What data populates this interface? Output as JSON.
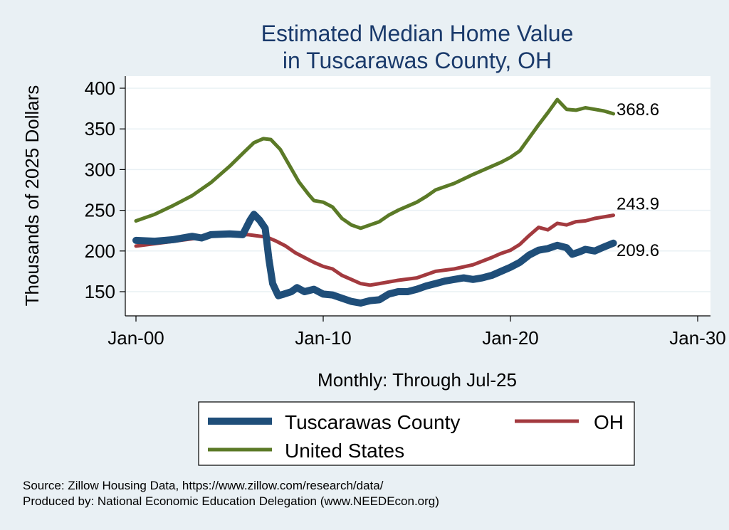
{
  "chart_data": {
    "type": "line",
    "title": [
      "Estimated Median Home Value",
      "in Tuscarawas County, OH"
    ],
    "ylabel": "Thousands of 2025 Dollars",
    "xlabel": "Monthly: Through Jul-25",
    "ylim": [
      125,
      410
    ],
    "yticks": [
      150,
      200,
      250,
      300,
      350,
      400
    ],
    "xlim": [
      2000,
      2030
    ],
    "xticks": [
      2000,
      2010,
      2020,
      2030
    ],
    "xtick_labels": [
      "Jan-00",
      "Jan-10",
      "Jan-20",
      "Jan-30"
    ],
    "grid": true,
    "legend_position": "bottom",
    "series": [
      {
        "name": "Tuscarawas County",
        "color": "#1f4e79",
        "end_label": "209.6",
        "points": [
          [
            2000.0,
            213
          ],
          [
            2001.0,
            212
          ],
          [
            2002.0,
            214
          ],
          [
            2003.0,
            218
          ],
          [
            2003.5,
            216
          ],
          [
            2004.0,
            220
          ],
          [
            2005.0,
            221
          ],
          [
            2005.7,
            220
          ],
          [
            2006.1,
            238
          ],
          [
            2006.3,
            245
          ],
          [
            2006.6,
            238
          ],
          [
            2006.9,
            228
          ],
          [
            2007.1,
            190
          ],
          [
            2007.3,
            160
          ],
          [
            2007.6,
            145
          ],
          [
            2007.9,
            147
          ],
          [
            2008.3,
            150
          ],
          [
            2008.6,
            155
          ],
          [
            2009.0,
            150
          ],
          [
            2009.5,
            153
          ],
          [
            2010.0,
            147
          ],
          [
            2010.5,
            146
          ],
          [
            2011.0,
            142
          ],
          [
            2011.5,
            138
          ],
          [
            2012.0,
            136
          ],
          [
            2012.5,
            139
          ],
          [
            2013.0,
            140
          ],
          [
            2013.5,
            147
          ],
          [
            2014.0,
            150
          ],
          [
            2014.5,
            150
          ],
          [
            2015.0,
            153
          ],
          [
            2015.5,
            157
          ],
          [
            2016.0,
            160
          ],
          [
            2016.5,
            163
          ],
          [
            2017.0,
            165
          ],
          [
            2017.5,
            167
          ],
          [
            2018.0,
            165
          ],
          [
            2018.5,
            167
          ],
          [
            2019.0,
            170
          ],
          [
            2019.5,
            175
          ],
          [
            2020.0,
            180
          ],
          [
            2020.5,
            186
          ],
          [
            2021.0,
            195
          ],
          [
            2021.5,
            201
          ],
          [
            2022.0,
            203
          ],
          [
            2022.5,
            207
          ],
          [
            2023.0,
            204
          ],
          [
            2023.3,
            196
          ],
          [
            2023.7,
            199
          ],
          [
            2024.0,
            202
          ],
          [
            2024.5,
            200
          ],
          [
            2025.0,
            205
          ],
          [
            2025.5,
            209.6
          ]
        ]
      },
      {
        "name": "OH",
        "color": "#a33a3f",
        "end_label": "243.9",
        "points": [
          [
            2000.0,
            206
          ],
          [
            2001.0,
            209
          ],
          [
            2002.0,
            212
          ],
          [
            2003.0,
            215
          ],
          [
            2004.0,
            218
          ],
          [
            2005.0,
            220
          ],
          [
            2006.0,
            220
          ],
          [
            2007.0,
            217
          ],
          [
            2007.5,
            212
          ],
          [
            2008.0,
            206
          ],
          [
            2008.5,
            198
          ],
          [
            2009.0,
            192
          ],
          [
            2009.5,
            186
          ],
          [
            2010.0,
            181
          ],
          [
            2010.5,
            178
          ],
          [
            2011.0,
            170
          ],
          [
            2011.5,
            165
          ],
          [
            2012.0,
            160
          ],
          [
            2012.5,
            158
          ],
          [
            2013.0,
            160
          ],
          [
            2013.5,
            162
          ],
          [
            2014.0,
            164
          ],
          [
            2015.0,
            167
          ],
          [
            2015.5,
            171
          ],
          [
            2016.0,
            175
          ],
          [
            2017.0,
            178
          ],
          [
            2018.0,
            183
          ],
          [
            2019.0,
            192
          ],
          [
            2019.5,
            197
          ],
          [
            2020.0,
            201
          ],
          [
            2020.5,
            208
          ],
          [
            2021.0,
            219
          ],
          [
            2021.5,
            229
          ],
          [
            2022.0,
            226
          ],
          [
            2022.5,
            234
          ],
          [
            2023.0,
            232
          ],
          [
            2023.5,
            236
          ],
          [
            2024.0,
            237
          ],
          [
            2024.5,
            240
          ],
          [
            2025.0,
            242
          ],
          [
            2025.5,
            243.9
          ]
        ]
      },
      {
        "name": "United States",
        "color": "#5b7a27",
        "end_label": "368.6",
        "points": [
          [
            2000.0,
            237
          ],
          [
            2001.0,
            245
          ],
          [
            2002.0,
            256
          ],
          [
            2003.0,
            268
          ],
          [
            2004.0,
            284
          ],
          [
            2005.0,
            304
          ],
          [
            2005.8,
            322
          ],
          [
            2006.3,
            333
          ],
          [
            2006.8,
            338
          ],
          [
            2007.2,
            337
          ],
          [
            2007.7,
            325
          ],
          [
            2008.2,
            305
          ],
          [
            2008.7,
            285
          ],
          [
            2009.2,
            270
          ],
          [
            2009.5,
            262
          ],
          [
            2010.0,
            260
          ],
          [
            2010.5,
            254
          ],
          [
            2011.0,
            240
          ],
          [
            2011.5,
            232
          ],
          [
            2012.0,
            228
          ],
          [
            2012.5,
            232
          ],
          [
            2013.0,
            236
          ],
          [
            2013.5,
            244
          ],
          [
            2014.0,
            250
          ],
          [
            2015.0,
            260
          ],
          [
            2015.5,
            267
          ],
          [
            2016.0,
            275
          ],
          [
            2017.0,
            283
          ],
          [
            2018.0,
            294
          ],
          [
            2019.0,
            304
          ],
          [
            2019.5,
            309
          ],
          [
            2020.0,
            315
          ],
          [
            2020.5,
            323
          ],
          [
            2021.0,
            339
          ],
          [
            2021.5,
            355
          ],
          [
            2022.0,
            370
          ],
          [
            2022.5,
            386
          ],
          [
            2023.0,
            374
          ],
          [
            2023.5,
            373
          ],
          [
            2024.0,
            376
          ],
          [
            2024.5,
            374
          ],
          [
            2025.0,
            372
          ],
          [
            2025.5,
            368.6
          ]
        ]
      }
    ]
  },
  "footer": {
    "source": "Source: Zillow Housing Data, https://www.zillow.com/research/data/",
    "produced": "Produced by: National Economic Education Delegation (www.NEEDEcon.org)"
  }
}
